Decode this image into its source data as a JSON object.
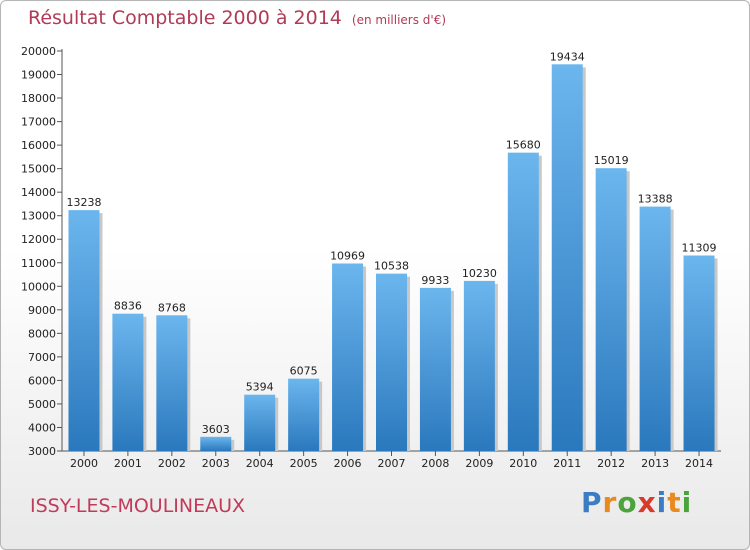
{
  "header": {
    "title": "Résultat Comptable 2000 à 2014",
    "unit": "(en milliers d'€)"
  },
  "footer": {
    "place": "ISSY-LES-MOULINEAUX",
    "logo": [
      "P",
      "r",
      "o",
      "x",
      "i",
      "t",
      "i"
    ]
  },
  "colors": {
    "bar_light": "#6cb6ee",
    "bar_dark": "#2a78bd",
    "title": "#b13a57"
  },
  "chart_data": {
    "type": "bar",
    "title": "Résultat Comptable 2000 à 2014",
    "subtitle": "(en milliers d'€)",
    "xlabel": "",
    "ylabel": "",
    "ylim": [
      3000,
      20000
    ],
    "ytick_step": 1000,
    "grid": false,
    "categories": [
      "2000",
      "2001",
      "2002",
      "2003",
      "2004",
      "2005",
      "2006",
      "2007",
      "2008",
      "2009",
      "2010",
      "2011",
      "2012",
      "2013",
      "2014"
    ],
    "values": [
      13238,
      8836,
      8768,
      3603,
      5394,
      6075,
      10969,
      10538,
      9933,
      10230,
      15680,
      19434,
      15019,
      13388,
      11309
    ]
  }
}
